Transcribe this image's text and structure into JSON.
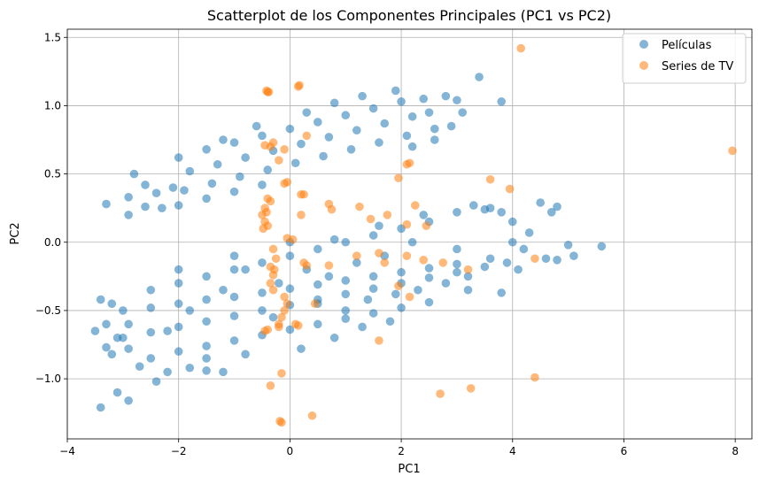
{
  "chart_data": {
    "type": "scatter",
    "title": "Scatterplot de los Componentes Principales (PC1 vs PC2)",
    "xlabel": "PC1",
    "ylabel": "PC2",
    "xlim": [
      -4.0,
      8.3
    ],
    "ylim": [
      -1.44,
      1.56
    ],
    "xticks": [
      -4,
      -2,
      0,
      2,
      4,
      6,
      8
    ],
    "xtick_labels": [
      "−4",
      "−2",
      "0",
      "2",
      "4",
      "6",
      "8"
    ],
    "yticks": [
      -1.0,
      -0.5,
      0.0,
      0.5,
      1.0,
      1.5
    ],
    "ytick_labels": [
      "−1.0",
      "−0.5",
      "0.0",
      "0.5",
      "1.0",
      "1.5"
    ],
    "grid": true,
    "legend_position": "top-right",
    "series": [
      {
        "name": "Películas",
        "color": "#1f77b4",
        "points": [
          [
            -2.0,
            0.62
          ],
          [
            -1.5,
            0.68
          ],
          [
            -1.0,
            0.73
          ],
          [
            -0.5,
            0.78
          ],
          [
            0.0,
            0.83
          ],
          [
            0.5,
            0.88
          ],
          [
            1.0,
            0.93
          ],
          [
            1.5,
            0.98
          ],
          [
            2.0,
            1.03
          ],
          [
            -1.8,
            0.52
          ],
          [
            -1.3,
            0.57
          ],
          [
            -0.8,
            0.62
          ],
          [
            -0.3,
            0.67
          ],
          [
            0.2,
            0.72
          ],
          [
            0.7,
            0.77
          ],
          [
            1.2,
            0.82
          ],
          [
            1.7,
            0.87
          ],
          [
            2.2,
            0.92
          ],
          [
            -1.9,
            0.38
          ],
          [
            -1.4,
            0.43
          ],
          [
            -0.9,
            0.48
          ],
          [
            -0.4,
            0.53
          ],
          [
            0.1,
            0.58
          ],
          [
            0.6,
            0.63
          ],
          [
            1.1,
            0.68
          ],
          [
            1.6,
            0.73
          ],
          [
            2.1,
            0.78
          ],
          [
            2.6,
            0.83
          ],
          [
            -2.0,
            0.27
          ],
          [
            -1.5,
            0.32
          ],
          [
            -1.0,
            0.37
          ],
          [
            -0.5,
            0.42
          ],
          [
            -1.2,
            0.75
          ],
          [
            -0.6,
            0.85
          ],
          [
            0.3,
            0.95
          ],
          [
            0.8,
            1.02
          ],
          [
            1.3,
            1.07
          ],
          [
            1.9,
            1.11
          ],
          [
            2.4,
            1.05
          ],
          [
            2.8,
            1.07
          ],
          [
            3.0,
            1.04
          ],
          [
            -3.3,
            0.28
          ],
          [
            -2.9,
            0.33
          ],
          [
            -2.8,
            0.5
          ],
          [
            -2.6,
            0.42
          ],
          [
            -2.9,
            0.2
          ],
          [
            -2.6,
            0.26
          ],
          [
            -2.4,
            0.36
          ],
          [
            -2.1,
            0.4
          ],
          [
            -2.3,
            0.25
          ],
          [
            2.5,
            0.95
          ],
          [
            2.9,
            0.85
          ],
          [
            3.1,
            0.95
          ],
          [
            3.4,
            1.21
          ],
          [
            3.8,
            1.03
          ],
          [
            2.2,
            0.7
          ],
          [
            2.6,
            0.75
          ],
          [
            -2.5,
            -0.35
          ],
          [
            -2.0,
            -0.3
          ],
          [
            -1.5,
            -0.25
          ],
          [
            -1.0,
            -0.2
          ],
          [
            -0.5,
            -0.15
          ],
          [
            0.0,
            -0.1
          ],
          [
            0.5,
            -0.05
          ],
          [
            1.0,
            0.0
          ],
          [
            1.5,
            0.05
          ],
          [
            2.0,
            0.1
          ],
          [
            2.5,
            0.15
          ],
          [
            -3.0,
            -0.5
          ],
          [
            -2.5,
            -0.48
          ],
          [
            -2.0,
            -0.45
          ],
          [
            -1.5,
            -0.42
          ],
          [
            -1.0,
            -0.4
          ],
          [
            -0.5,
            -0.37
          ],
          [
            0.0,
            -0.34
          ],
          [
            0.5,
            -0.31
          ],
          [
            1.0,
            -0.28
          ],
          [
            1.5,
            -0.25
          ],
          [
            2.0,
            -0.22
          ],
          [
            2.5,
            -0.19
          ],
          [
            3.0,
            -0.16
          ],
          [
            -3.0,
            -0.7
          ],
          [
            -2.5,
            -0.66
          ],
          [
            -2.0,
            -0.62
          ],
          [
            -1.5,
            -0.58
          ],
          [
            -1.0,
            -0.54
          ],
          [
            -0.5,
            -0.5
          ],
          [
            0.0,
            -0.46
          ],
          [
            0.5,
            -0.42
          ],
          [
            1.0,
            -0.38
          ],
          [
            1.5,
            -0.34
          ],
          [
            2.0,
            -0.3
          ],
          [
            2.5,
            -0.26
          ],
          [
            3.0,
            -0.22
          ],
          [
            3.5,
            -0.18
          ],
          [
            -2.5,
            -0.85
          ],
          [
            -2.0,
            -0.8
          ],
          [
            -1.5,
            -0.76
          ],
          [
            -1.0,
            -0.72
          ],
          [
            -0.5,
            -0.68
          ],
          [
            0.0,
            -0.64
          ],
          [
            0.5,
            -0.6
          ],
          [
            1.0,
            -0.56
          ],
          [
            1.5,
            -0.52
          ],
          [
            2.0,
            -0.48
          ],
          [
            2.5,
            -0.44
          ],
          [
            -2.0,
            -0.2
          ],
          [
            -1.0,
            -0.1
          ],
          [
            0.0,
            0.0
          ],
          [
            0.8,
            0.02
          ],
          [
            1.6,
            0.12
          ],
          [
            2.4,
            0.2
          ],
          [
            3.0,
            0.22
          ],
          [
            3.5,
            0.24
          ],
          [
            -1.5,
            -0.85
          ],
          [
            -0.8,
            -0.82
          ],
          [
            0.2,
            -0.78
          ],
          [
            0.8,
            -0.7
          ],
          [
            1.3,
            -0.62
          ],
          [
            1.8,
            -0.58
          ],
          [
            -3.4,
            -0.42
          ],
          [
            -3.3,
            -0.6
          ],
          [
            -3.2,
            -0.45
          ],
          [
            -3.5,
            -0.65
          ],
          [
            -3.3,
            -0.77
          ],
          [
            -3.2,
            -0.82
          ],
          [
            -3.1,
            -0.7
          ],
          [
            -2.9,
            -0.6
          ],
          [
            -2.9,
            -0.78
          ],
          [
            -3.4,
            -1.21
          ],
          [
            -3.1,
            -1.1
          ],
          [
            -2.9,
            -1.16
          ],
          [
            -2.4,
            -1.02
          ],
          [
            -2.7,
            -0.91
          ],
          [
            -2.2,
            -0.95
          ],
          [
            -1.8,
            -0.92
          ],
          [
            -1.5,
            -0.94
          ],
          [
            -1.2,
            -0.95
          ],
          [
            3.3,
            0.27
          ],
          [
            3.6,
            0.25
          ],
          [
            3.8,
            0.22
          ],
          [
            4.0,
            0.15
          ],
          [
            4.3,
            0.07
          ],
          [
            4.7,
            0.22
          ],
          [
            4.8,
            0.26
          ],
          [
            4.5,
            0.29
          ],
          [
            4.2,
            -0.05
          ],
          [
            4.6,
            -0.12
          ],
          [
            5.0,
            -0.02
          ],
          [
            4.8,
            -0.13
          ],
          [
            5.6,
            -0.03
          ],
          [
            5.1,
            -0.1
          ],
          [
            4.0,
            0.0
          ],
          [
            3.9,
            -0.15
          ],
          [
            4.1,
            -0.2
          ],
          [
            3.0,
            -0.05
          ],
          [
            3.2,
            -0.25
          ],
          [
            3.6,
            -0.12
          ],
          [
            3.8,
            -0.37
          ],
          [
            3.2,
            -0.35
          ],
          [
            0.5,
            -0.45
          ],
          [
            1.0,
            -0.5
          ],
          [
            1.4,
            -0.42
          ],
          [
            1.9,
            -0.38
          ],
          [
            2.3,
            -0.35
          ],
          [
            2.8,
            -0.3
          ],
          [
            1.2,
            -0.15
          ],
          [
            0.7,
            -0.25
          ],
          [
            -0.2,
            -0.3
          ],
          [
            -0.8,
            -0.2
          ],
          [
            -1.2,
            -0.35
          ],
          [
            -1.8,
            -0.5
          ],
          [
            -2.2,
            -0.65
          ],
          [
            -0.3,
            -0.55
          ],
          [
            0.3,
            -0.2
          ],
          [
            1.7,
            -0.1
          ],
          [
            2.2,
            0.0
          ]
        ]
      },
      {
        "name": "Series de TV",
        "color": "#ff7f0e",
        "points": [
          [
            -0.4,
            1.1
          ],
          [
            -0.42,
            1.11
          ],
          [
            -0.38,
            1.1
          ],
          [
            0.15,
            1.14
          ],
          [
            0.17,
            1.15
          ],
          [
            4.15,
            1.42
          ],
          [
            7.95,
            0.67
          ],
          [
            -0.35,
            0.7
          ],
          [
            -0.45,
            0.71
          ],
          [
            -0.3,
            0.73
          ],
          [
            -0.1,
            0.68
          ],
          [
            0.3,
            0.78
          ],
          [
            -0.2,
            0.6
          ],
          [
            -0.1,
            0.43
          ],
          [
            -0.05,
            0.44
          ],
          [
            1.95,
            0.47
          ],
          [
            2.1,
            0.57
          ],
          [
            2.15,
            0.58
          ],
          [
            3.6,
            0.46
          ],
          [
            3.95,
            0.39
          ],
          [
            2.25,
            0.27
          ],
          [
            1.25,
            0.26
          ],
          [
            0.7,
            0.28
          ],
          [
            0.75,
            0.24
          ],
          [
            0.2,
            0.2
          ],
          [
            0.2,
            0.35
          ],
          [
            0.25,
            0.35
          ],
          [
            -0.4,
            0.32
          ],
          [
            -0.35,
            0.3
          ],
          [
            -0.45,
            0.25
          ],
          [
            -0.5,
            0.2
          ],
          [
            -0.45,
            0.15
          ],
          [
            -0.42,
            0.22
          ],
          [
            -0.48,
            0.1
          ],
          [
            -0.4,
            0.12
          ],
          [
            1.45,
            0.17
          ],
          [
            1.75,
            0.2
          ],
          [
            2.45,
            0.12
          ],
          [
            2.1,
            0.13
          ],
          [
            -0.05,
            0.03
          ],
          [
            0.05,
            0.02
          ],
          [
            -0.3,
            -0.05
          ],
          [
            -0.25,
            -0.12
          ],
          [
            -0.35,
            -0.18
          ],
          [
            -0.3,
            -0.24
          ],
          [
            -0.35,
            -0.3
          ],
          [
            -0.3,
            -0.35
          ],
          [
            -0.28,
            -0.2
          ],
          [
            0.25,
            -0.15
          ],
          [
            0.3,
            -0.17
          ],
          [
            0.7,
            -0.17
          ],
          [
            1.2,
            -0.1
          ],
          [
            1.6,
            -0.08
          ],
          [
            1.7,
            -0.15
          ],
          [
            2.1,
            -0.1
          ],
          [
            2.4,
            -0.13
          ],
          [
            2.75,
            -0.15
          ],
          [
            3.2,
            -0.2
          ],
          [
            4.4,
            -0.12
          ],
          [
            1.95,
            -0.32
          ],
          [
            2.15,
            -0.4
          ],
          [
            0.45,
            -0.45
          ],
          [
            -0.1,
            -0.5
          ],
          [
            -0.05,
            -0.45
          ],
          [
            -0.1,
            -0.4
          ],
          [
            -0.15,
            -0.55
          ],
          [
            -0.2,
            -0.6
          ],
          [
            -0.2,
            -0.62
          ],
          [
            0.1,
            -0.6
          ],
          [
            0.15,
            -0.61
          ],
          [
            -0.4,
            -0.64
          ],
          [
            -0.45,
            -0.65
          ],
          [
            1.6,
            -0.72
          ],
          [
            -0.15,
            -0.96
          ],
          [
            -0.35,
            -1.05
          ],
          [
            0.4,
            -1.27
          ],
          [
            -0.15,
            -1.32
          ],
          [
            -0.18,
            -1.31
          ],
          [
            2.7,
            -1.11
          ],
          [
            3.25,
            -1.07
          ],
          [
            4.4,
            -0.99
          ]
        ]
      }
    ]
  }
}
